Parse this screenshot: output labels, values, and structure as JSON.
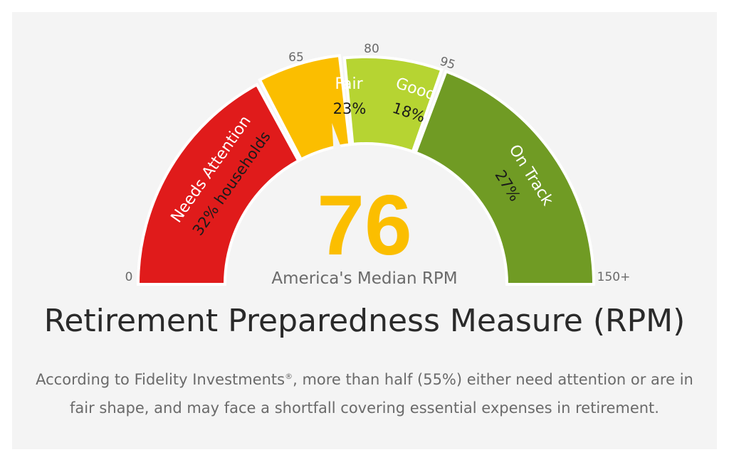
{
  "chart_data": {
    "type": "gauge",
    "title": "Retirement Preparedness Measure (RPM)",
    "value": 76,
    "value_label": "America's Median RPM",
    "axis_labels": [
      "0",
      "65",
      "80",
      "95",
      "150+"
    ],
    "bands": [
      {
        "name": "Needs Attention",
        "share": "32% households",
        "from": 0,
        "to": 65,
        "color": "#e01b1b"
      },
      {
        "name": "Fair",
        "share": "23%",
        "from": 65,
        "to": 80,
        "color": "#fbbe00"
      },
      {
        "name": "Good",
        "share": "18%",
        "from": 80,
        "to": 95,
        "color": "#b6d432"
      },
      {
        "name": "On Track",
        "share": "27%",
        "from": 95,
        "to": 150,
        "color": "#709b24"
      }
    ]
  },
  "footer": {
    "text_before": "According to Fidelity Investments",
    "registered_mark": "®",
    "text_after": ", more than half (55%) either need attention or are in fair shape, and may face a shortfall covering essential expenses in retirement."
  }
}
